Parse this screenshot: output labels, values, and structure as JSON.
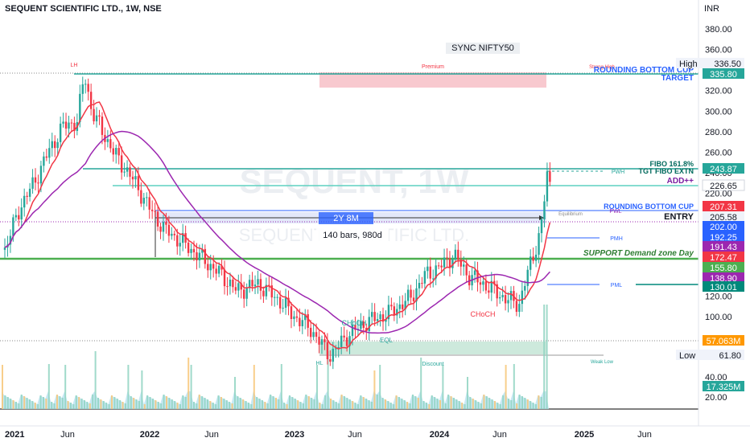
{
  "header": {
    "title": "SEQUENT SCIENTIFIC LTD., 1W, NSE",
    "currency": "INR",
    "sync_label": "SYNC NIFTY50"
  },
  "watermark": {
    "big": "SEQUENT, 1W",
    "small": "SEQUENT SCIENTIFIC LTD."
  },
  "chart_data": {
    "type": "candlestick",
    "title": "SEQUENT SCIENTIFIC LTD., 1W, NSE",
    "x_ticks": [
      "2021",
      "Jun",
      "2022",
      "Jun",
      "2023",
      "Jun",
      "2024",
      "Jun",
      "2025",
      "Jun"
    ],
    "y_ticks": [
      380,
      360,
      340,
      320,
      300,
      280,
      260,
      240,
      220,
      200,
      180,
      160,
      140,
      120,
      100
    ],
    "volume_ticks": [
      40,
      20
    ],
    "price_series_weekly_close_approx": [
      [
        2021.0,
        165
      ],
      [
        2021.1,
        205
      ],
      [
        2021.2,
        230
      ],
      [
        2021.3,
        260
      ],
      [
        2021.4,
        285
      ],
      [
        2021.5,
        290
      ],
      [
        2021.55,
        336.5
      ],
      [
        2021.6,
        300
      ],
      [
        2021.75,
        260
      ],
      [
        2021.9,
        230
      ],
      [
        2022.0,
        205
      ],
      [
        2022.1,
        185
      ],
      [
        2022.2,
        175
      ],
      [
        2022.35,
        158
      ],
      [
        2022.5,
        140
      ],
      [
        2022.6,
        125
      ],
      [
        2022.75,
        132
      ],
      [
        2022.9,
        115
      ],
      [
        2023.0,
        100
      ],
      [
        2023.1,
        90
      ],
      [
        2023.2,
        70
      ],
      [
        2023.25,
        61.8
      ],
      [
        2023.35,
        80
      ],
      [
        2023.5,
        95
      ],
      [
        2023.65,
        103
      ],
      [
        2023.8,
        118
      ],
      [
        2023.9,
        140
      ],
      [
        2024.0,
        148
      ],
      [
        2024.1,
        160
      ],
      [
        2024.2,
        140
      ],
      [
        2024.35,
        128
      ],
      [
        2024.45,
        118
      ],
      [
        2024.55,
        112
      ],
      [
        2024.6,
        138
      ],
      [
        2024.65,
        160
      ],
      [
        2024.7,
        185
      ],
      [
        2024.75,
        243.87
      ],
      [
        2024.78,
        207.31
      ]
    ],
    "moving_averages": [
      {
        "name": "",
        "color": "#f23645"
      },
      {
        "name": "",
        "color": "#9c27b0"
      }
    ],
    "volume_ma_series_color": "#7ec8e3"
  },
  "annotations": {
    "lh": "LH",
    "premium": "Premium",
    "hl": "HL",
    "eql": "EQL",
    "discount": "Discount",
    "weak_low": "Weak Low",
    "choch_1": "CHoCH",
    "choch_2": "CHoCH",
    "pwh": "PWH",
    "pwl": "PWL",
    "pmh": "PMH",
    "pml": "PML",
    "equilibrium": "Equilibrium",
    "strong_high": "Strong High",
    "range_label": "2Y 8M",
    "bars_label": "140 bars, 980d",
    "rounding_target": "ROUNDING BOTTOM CUP\nTARGET",
    "fibo": "FIBO 161.8%",
    "tgt_fibo": "TGT FIBO EXTN",
    "add": "ADD++",
    "rounding_entry": "ROUNDING BOTTOM CUP",
    "entry": "ENTRY",
    "support": "SUPPORT Demand zone Day"
  },
  "price_tags": [
    {
      "label": "High",
      "value": "336.50",
      "bg": "#ffffff",
      "fg": "#131722"
    },
    {
      "value": "335.80",
      "bg": "#26a69a",
      "fg": "#ffffff"
    },
    {
      "value": "243.87",
      "bg": "#26a69a",
      "fg": "#ffffff"
    },
    {
      "value": "226.65",
      "bg": "#ffffff",
      "fg": "#131722"
    },
    {
      "value": "207.31",
      "bg": "#f23645",
      "fg": "#ffffff"
    },
    {
      "value": "205.58",
      "bg": "#f0f3fa",
      "fg": "#131722"
    },
    {
      "value": "202.00",
      "bg": "#2962ff",
      "fg": "#ffffff"
    },
    {
      "value": "192.25",
      "bg": "#2962ff",
      "fg": "#ffffff"
    },
    {
      "value": "191.43",
      "bg": "#9c27b0",
      "fg": "#ffffff"
    },
    {
      "value": "172.47",
      "bg": "#f23645",
      "fg": "#ffffff"
    },
    {
      "value": "155.80",
      "bg": "#4caf50",
      "fg": "#ffffff"
    },
    {
      "value": "138.90",
      "bg": "#9c27b0",
      "fg": "#ffffff"
    },
    {
      "value": "130.01",
      "bg": "#00897b",
      "fg": "#ffffff"
    },
    {
      "value": "57.063M",
      "bg": "#ff9800",
      "fg": "#ffffff"
    },
    {
      "label": "Low",
      "value": "61.80",
      "bg": "#ffffff",
      "fg": "#131722"
    },
    {
      "value": "17.325M",
      "bg": "#26a69a",
      "fg": "#ffffff"
    }
  ],
  "colors": {
    "up": "#26a69a",
    "down": "#f23645",
    "teal_line": "#26a69a",
    "support_line": "#4caf50",
    "blue_line": "#2962ff"
  }
}
